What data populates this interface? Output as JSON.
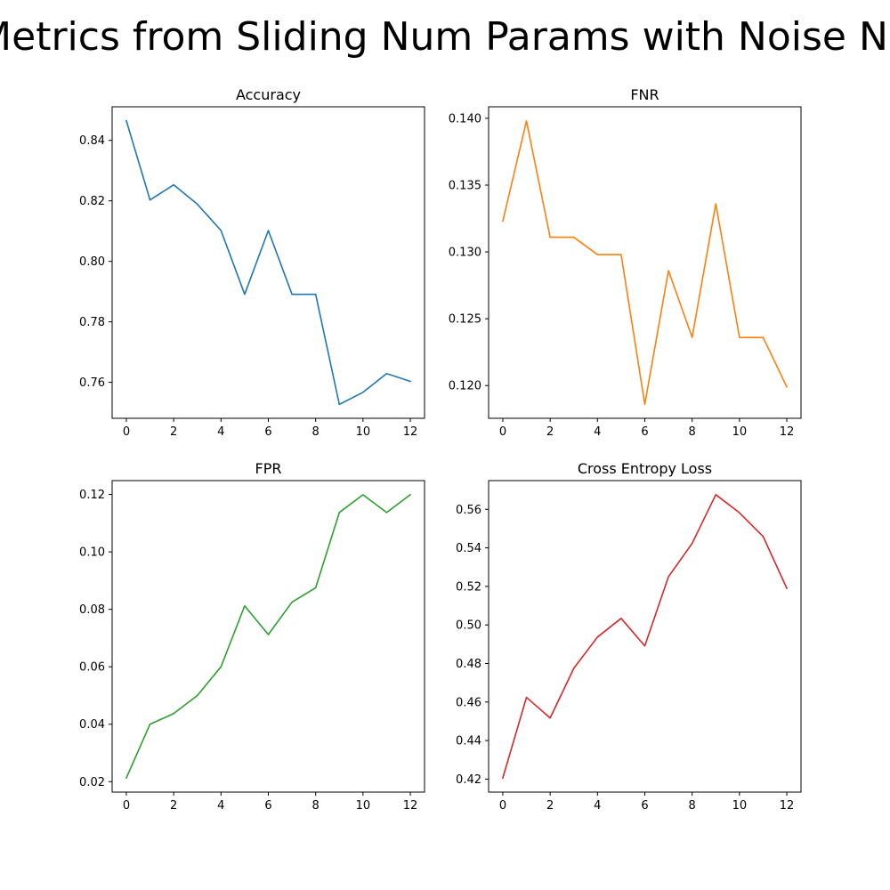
{
  "suptitle": "Metrics from Sliding Num Params with Noise Na",
  "chart_data": [
    {
      "type": "line",
      "title": "Accuracy",
      "color": "#1f77b4",
      "x": [
        0,
        1,
        2,
        3,
        4,
        5,
        6,
        7,
        8,
        9,
        10,
        11,
        12
      ],
      "y": [
        0.8465,
        0.8203,
        0.8253,
        0.8189,
        0.8102,
        0.7891,
        0.8102,
        0.7891,
        0.7891,
        0.7527,
        0.7567,
        0.7629,
        0.7603
      ],
      "xlim": [
        -0.6,
        12.6
      ],
      "ylim": [
        0.7481,
        0.8511
      ],
      "xticks": [
        0,
        2,
        4,
        6,
        8,
        10,
        12
      ],
      "yticks": [
        0.76,
        0.78,
        0.8,
        0.82,
        0.84
      ],
      "ytick_labels": [
        "0.76",
        "0.78",
        "0.80",
        "0.82",
        "0.84"
      ],
      "grid": false
    },
    {
      "type": "line",
      "title": "FNR",
      "color": "#ff7f0e",
      "x": [
        0,
        1,
        2,
        3,
        4,
        5,
        6,
        7,
        8,
        9,
        10,
        11,
        12
      ],
      "y": [
        0.1323,
        0.1398,
        0.1311,
        0.1311,
        0.1298,
        0.1298,
        0.1186,
        0.1286,
        0.1236,
        0.1336,
        0.1236,
        0.1236,
        0.1199
      ],
      "xlim": [
        -0.6,
        12.6
      ],
      "ylim": [
        0.11755,
        0.14086
      ],
      "xticks": [
        0,
        2,
        4,
        6,
        8,
        10,
        12
      ],
      "yticks": [
        0.12,
        0.125,
        0.13,
        0.135,
        0.14
      ],
      "ytick_labels": [
        "0.120",
        "0.125",
        "0.130",
        "0.135",
        "0.140"
      ],
      "grid": false
    },
    {
      "type": "line",
      "title": "FPR",
      "color": "#2ca02c",
      "x": [
        0,
        1,
        2,
        3,
        4,
        5,
        6,
        7,
        8,
        9,
        10,
        11,
        12
      ],
      "y": [
        0.0213,
        0.04,
        0.0437,
        0.05,
        0.06,
        0.0812,
        0.0712,
        0.0825,
        0.0875,
        0.1137,
        0.1199,
        0.1137,
        0.1199
      ],
      "xlim": [
        -0.6,
        12.6
      ],
      "ylim": [
        0.01637,
        0.12481
      ],
      "xticks": [
        0,
        2,
        4,
        6,
        8,
        10,
        12
      ],
      "yticks": [
        0.02,
        0.04,
        0.06,
        0.08,
        0.1,
        0.12
      ],
      "ytick_labels": [
        "0.02",
        "0.04",
        "0.06",
        "0.08",
        "0.10",
        "0.12"
      ],
      "grid": false
    },
    {
      "type": "line",
      "title": "Cross Entropy Loss",
      "color": "#d62728",
      "x": [
        0,
        1,
        2,
        3,
        4,
        5,
        6,
        7,
        8,
        9,
        10,
        11,
        12
      ],
      "y": [
        0.4206,
        0.4624,
        0.4517,
        0.4775,
        0.4937,
        0.5034,
        0.4891,
        0.525,
        0.5423,
        0.5676,
        0.5582,
        0.5459,
        0.519
      ],
      "xlim": [
        -0.6,
        12.6
      ],
      "ylim": [
        0.41325,
        0.5749
      ],
      "xticks": [
        0,
        2,
        4,
        6,
        8,
        10,
        12
      ],
      "yticks": [
        0.42,
        0.44,
        0.46,
        0.48,
        0.5,
        0.52,
        0.54,
        0.56
      ],
      "ytick_labels": [
        "0.42",
        "0.44",
        "0.46",
        "0.48",
        "0.50",
        "0.52",
        "0.54",
        "0.56"
      ],
      "grid": false
    }
  ]
}
